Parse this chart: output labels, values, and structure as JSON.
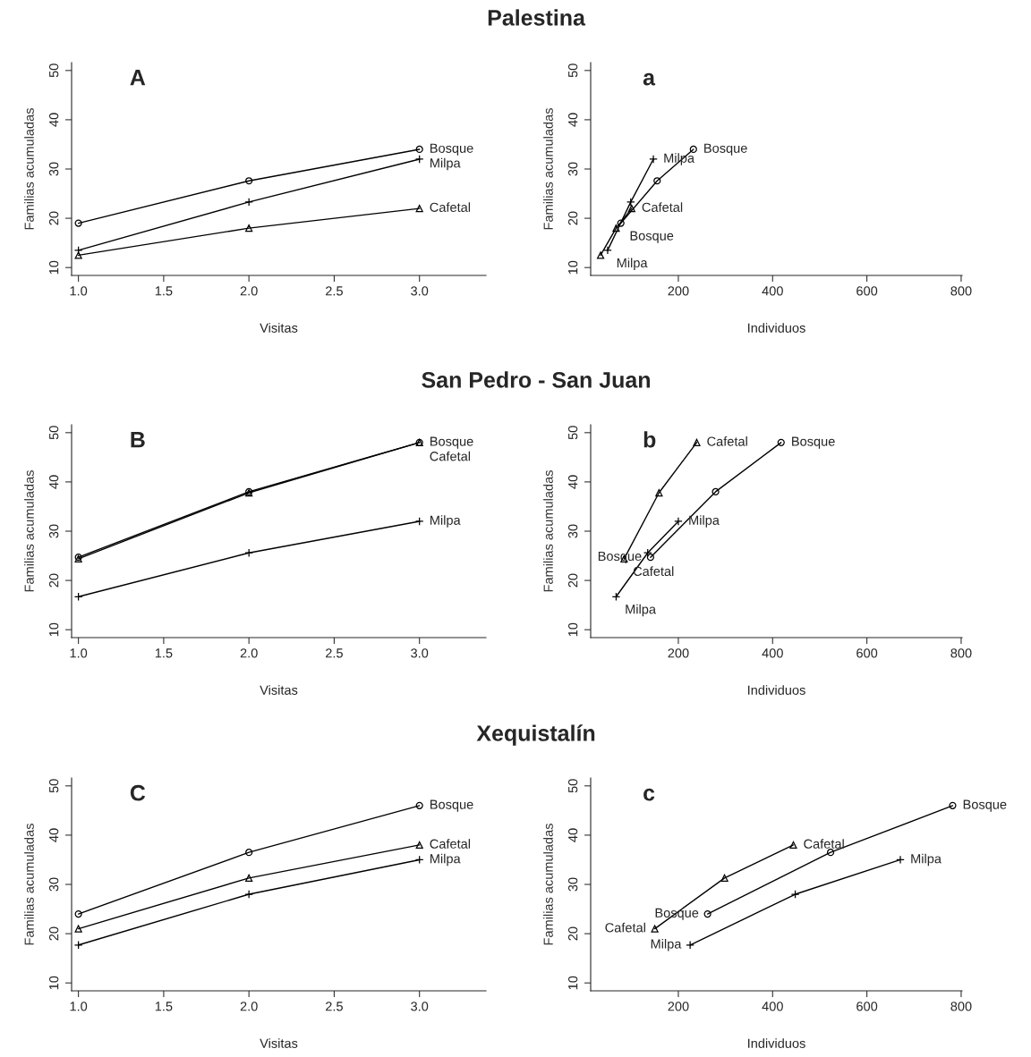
{
  "chart_data": [
    {
      "type": "line",
      "title": "Palestina",
      "annotations": [
        "A"
      ],
      "xlabel": "Visitas",
      "ylabel": "Familias acumuladas",
      "xlim": [
        0.96,
        3.39
      ],
      "ylim": [
        8.4,
        51.6
      ],
      "xticks": [
        {
          "value": 1,
          "label": "1.0"
        },
        1.5,
        {
          "value": 2,
          "label": "2.0"
        },
        2.5,
        {
          "value": 3,
          "label": "3.0"
        }
      ],
      "yticks": [
        10,
        20,
        30,
        40,
        50
      ],
      "grid": false,
      "legend": false,
      "x": [
        1,
        2,
        3
      ],
      "series": [
        {
          "name": "Bosque",
          "color": "#000000",
          "marker": "circle",
          "values": [
            19,
            27.6,
            34
          ]
        },
        {
          "name": "Milpa",
          "color": "#000000",
          "marker": "cross",
          "values": [
            13.5,
            23.3,
            32
          ]
        },
        {
          "name": "Cafetal",
          "color": "#000000",
          "marker": "triangle",
          "values": [
            12.5,
            18,
            22
          ]
        }
      ]
    },
    {
      "type": "line",
      "annotations": [
        "a",
        {
          "text": "Bosque",
          "x": 78,
          "y": 19
        },
        {
          "text": "Milpa",
          "x": 50,
          "y": 13.5
        }
      ],
      "xlabel": "Individuos",
      "ylabel": "Familias acumuladas",
      "xlim": [
        14,
        802
      ],
      "ylim": [
        8.4,
        51.6
      ],
      "xticks": [
        200,
        400,
        600,
        800
      ],
      "yticks": [
        10,
        20,
        30,
        40,
        50
      ],
      "grid": false,
      "legend": false,
      "series": [
        {
          "name": "Bosque",
          "color": "#000000",
          "marker": "circle",
          "x": [
            78,
            155,
            232
          ],
          "values": [
            19,
            27.6,
            34
          ]
        },
        {
          "name": "Milpa",
          "color": "#000000",
          "marker": "cross",
          "x": [
            50,
            99,
            147
          ],
          "values": [
            13.5,
            23.3,
            32
          ]
        },
        {
          "name": "Cafetal",
          "color": "#000000",
          "marker": "triangle",
          "x": [
            35,
            68,
            101
          ],
          "values": [
            12.5,
            18,
            22
          ]
        }
      ]
    },
    {
      "type": "line",
      "title": "San Pedro - San Juan",
      "annotations": [
        "B"
      ],
      "xlabel": "Visitas",
      "ylabel": "Familias acumuladas",
      "xlim": [
        0.96,
        3.39
      ],
      "ylim": [
        8.4,
        51.6
      ],
      "xticks": [
        {
          "value": 1,
          "label": "1.0"
        },
        1.5,
        {
          "value": 2,
          "label": "2.0"
        },
        2.5,
        {
          "value": 3,
          "label": "3.0"
        }
      ],
      "yticks": [
        10,
        20,
        30,
        40,
        50
      ],
      "grid": false,
      "legend": false,
      "x": [
        1,
        2,
        3
      ],
      "series": [
        {
          "name": "Bosque",
          "color": "#000000",
          "marker": "circle",
          "values": [
            24.7,
            38,
            48
          ]
        },
        {
          "name": "Milpa",
          "color": "#000000",
          "marker": "cross",
          "values": [
            16.7,
            25.6,
            32
          ]
        },
        {
          "name": "Cafetal",
          "color": "#000000",
          "marker": "triangle",
          "values": [
            24.4,
            37.8,
            48
          ]
        }
      ]
    },
    {
      "type": "line",
      "annotations": [
        "b",
        {
          "text": "Bosque",
          "x": 141,
          "y": 24.7
        },
        {
          "text": "Milpa",
          "x": 68,
          "y": 16.7
        },
        {
          "text": "Cafetal",
          "x": 85,
          "y": 24.4
        }
      ],
      "xlabel": "Individuos",
      "ylabel": "Familias acumuladas",
      "xlim": [
        14,
        802
      ],
      "ylim": [
        8.4,
        51.6
      ],
      "xticks": [
        200,
        400,
        600,
        800
      ],
      "yticks": [
        10,
        20,
        30,
        40,
        50
      ],
      "grid": false,
      "legend": false,
      "series": [
        {
          "name": "Bosque",
          "color": "#000000",
          "marker": "circle",
          "x": [
            141,
            279,
            418
          ],
          "values": [
            24.7,
            38,
            48
          ]
        },
        {
          "name": "Milpa",
          "color": "#000000",
          "marker": "cross",
          "x": [
            68,
            135,
            200
          ],
          "values": [
            16.7,
            25.6,
            32
          ]
        },
        {
          "name": "Cafetal",
          "color": "#000000",
          "marker": "triangle",
          "x": [
            85,
            159,
            239
          ],
          "values": [
            24.4,
            37.8,
            48
          ]
        }
      ]
    },
    {
      "type": "line",
      "title": "Xequistalín",
      "annotations": [
        "C"
      ],
      "xlabel": "Visitas",
      "ylabel": "Familias acumuladas",
      "xlim": [
        0.96,
        3.39
      ],
      "ylim": [
        8.4,
        51.6
      ],
      "xticks": [
        {
          "value": 1,
          "label": "1.0"
        },
        1.5,
        {
          "value": 2,
          "label": "2.0"
        },
        2.5,
        {
          "value": 3,
          "label": "3.0"
        }
      ],
      "yticks": [
        10,
        20,
        30,
        40,
        50
      ],
      "grid": false,
      "legend": false,
      "x": [
        1,
        2,
        3
      ],
      "series": [
        {
          "name": "Bosque",
          "color": "#000000",
          "marker": "circle",
          "values": [
            24,
            36.5,
            46
          ]
        },
        {
          "name": "Milpa",
          "color": "#000000",
          "marker": "cross",
          "values": [
            17.7,
            28,
            35
          ]
        },
        {
          "name": "Cafetal",
          "color": "#000000",
          "marker": "triangle",
          "values": [
            21,
            31.3,
            38
          ]
        }
      ]
    },
    {
      "type": "line",
      "annotations": [
        "c",
        {
          "text": "Bosque",
          "x": 262,
          "y": 24
        },
        {
          "text": "Milpa",
          "x": 225,
          "y": 17.7
        },
        {
          "text": "Cafetal",
          "x": 150,
          "y": 21
        }
      ],
      "xlabel": "Individuos",
      "ylabel": "Familias acumuladas",
      "xlim": [
        14,
        802
      ],
      "ylim": [
        8.4,
        51.6
      ],
      "xticks": [
        200,
        400,
        600,
        800
      ],
      "yticks": [
        10,
        20,
        30,
        40,
        50
      ],
      "grid": false,
      "legend": false,
      "series": [
        {
          "name": "Bosque",
          "color": "#000000",
          "marker": "circle",
          "x": [
            262,
            523,
            782
          ],
          "values": [
            24,
            36.5,
            46
          ]
        },
        {
          "name": "Milpa",
          "color": "#000000",
          "marker": "cross",
          "x": [
            225,
            448,
            671
          ],
          "values": [
            17.7,
            28,
            35
          ]
        },
        {
          "name": "Cafetal",
          "color": "#000000",
          "marker": "triangle",
          "x": [
            150,
            298,
            444
          ],
          "values": [
            21,
            31.3,
            38
          ]
        }
      ]
    }
  ]
}
